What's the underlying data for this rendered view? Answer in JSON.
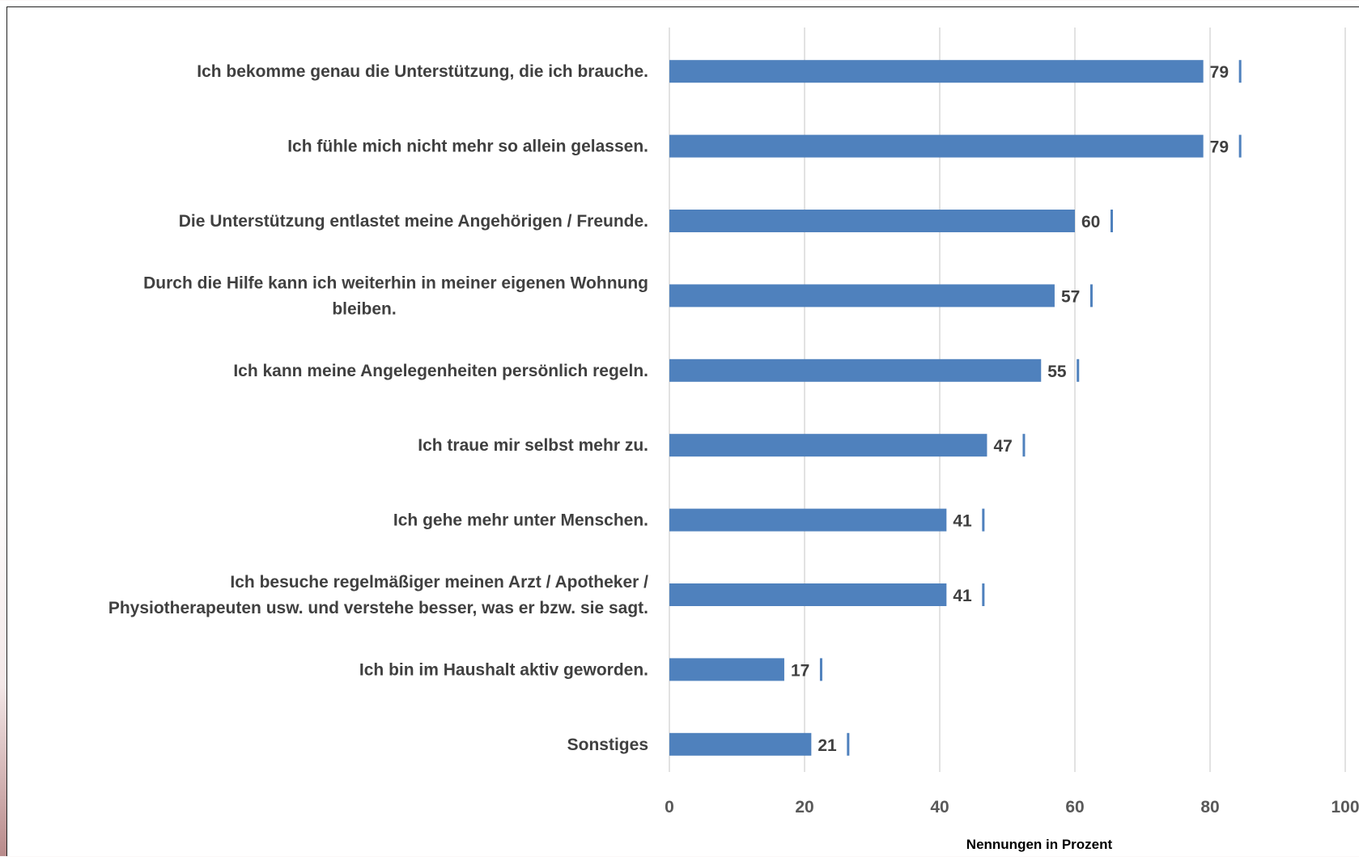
{
  "chart_data": {
    "type": "bar",
    "orientation": "horizontal",
    "categories": [
      "Ich bekomme genau die Unterstützung, die ich brauche.",
      "Ich fühle mich nicht mehr so allein gelassen.",
      "Die Unterstützung entlastet meine Angehörigen / Freunde.",
      "Durch die Hilfe kann ich weiterhin in meiner eigenen Wohnung bleiben.",
      "Ich kann meine Angelegenheiten persönlich regeln.",
      "Ich traue mir selbst mehr zu.",
      "Ich gehe mehr unter Menschen.",
      "Ich besuche regelmäßiger meinen Arzt / Apotheker / Physiotherapeuten usw. und verstehe besser, was er bzw. sie sagt.",
      "Ich bin im Haushalt aktiv geworden.",
      "Sonstiges"
    ],
    "category_lines": [
      [
        "Ich bekomme genau die Unterstützung, die ich brauche."
      ],
      [
        "Ich fühle mich nicht mehr so allein gelassen."
      ],
      [
        "Die Unterstützung entlastet meine Angehörigen / Freunde."
      ],
      [
        "Durch die Hilfe kann ich weiterhin in meiner eigenen Wohnung",
        "bleiben."
      ],
      [
        "Ich kann meine Angelegenheiten persönlich regeln."
      ],
      [
        "Ich traue mir selbst mehr zu."
      ],
      [
        "Ich gehe mehr unter Menschen."
      ],
      [
        "Ich besuche regelmäßiger meinen Arzt / Apotheker /",
        "Physiotherapeuten usw. und verstehe besser, was er bzw. sie sagt."
      ],
      [
        "Ich bin im Haushalt aktiv geworden."
      ],
      [
        "Sonstiges"
      ]
    ],
    "values": [
      79,
      79,
      60,
      57,
      55,
      47,
      41,
      41,
      17,
      21
    ],
    "value_labels": [
      "79",
      "79",
      "60",
      "57",
      "55",
      "47",
      "41",
      "41",
      "17",
      "21"
    ],
    "xlim": [
      0,
      100
    ],
    "xticks": [
      0,
      20,
      40,
      60,
      80,
      100
    ],
    "xtick_labels": [
      "0",
      "20",
      "40",
      "60",
      "80",
      "100"
    ],
    "xlabel": "Nennungen in Prozent",
    "ylabel": "",
    "title": "",
    "grid": "vertical",
    "legend": "none",
    "colors": {
      "bar": "#4f81bd",
      "grid": "#d9d9d9",
      "label": "#404040",
      "tick": "#595959"
    }
  }
}
